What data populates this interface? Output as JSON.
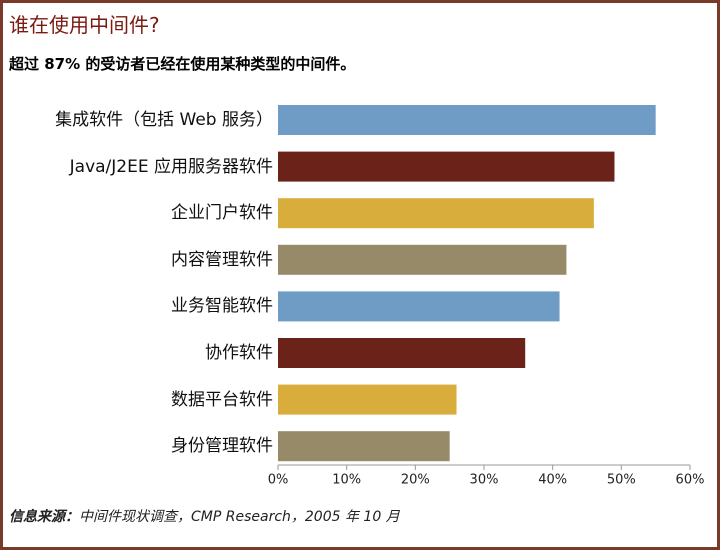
{
  "chart_data": {
    "type": "bar",
    "orientation": "horizontal",
    "title": "谁在使用中间件?",
    "subtitle": "超过 87% 的受访者已经在使用某种类型的中间件。",
    "categories": [
      "集成软件（包括 Web 服务）",
      "Java/J2EE 应用服务器软件",
      "企业门户软件",
      "内容管理软件",
      "业务智能软件",
      "协作软件",
      "数据平台软件",
      "身份管理软件"
    ],
    "values": [
      55,
      49,
      46,
      42,
      41,
      36,
      26,
      25
    ],
    "colors": [
      "#6f9cc4",
      "#6b2218",
      "#d9ad3c",
      "#968a68",
      "#6f9cc4",
      "#6b2218",
      "#d9ad3c",
      "#968a68"
    ],
    "xlim": [
      0,
      60
    ],
    "xticks": [
      {
        "value": 0,
        "label": "0%"
      },
      {
        "value": 10,
        "label": "10%"
      },
      {
        "value": 20,
        "label": "20%"
      },
      {
        "value": 30,
        "label": "30%"
      },
      {
        "value": 40,
        "label": "40%"
      },
      {
        "value": 50,
        "label": "50%"
      },
      {
        "value": 60,
        "label": "60%"
      }
    ],
    "grid": false,
    "source_label": "信息来源：",
    "source_text": "中间件现状调查，CMP Research，2005 年 10 月"
  }
}
